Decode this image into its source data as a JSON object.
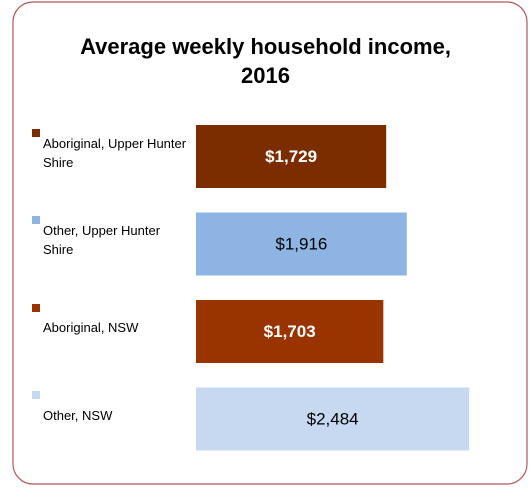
{
  "chart_data": {
    "type": "bar",
    "orientation": "horizontal",
    "title": "Average weekly household income, 2016",
    "categories": [
      "Aboriginal, Upper Hunter Shire",
      "Other, Upper Hunter Shire",
      "Aboriginal, NSW",
      "Other, NSW"
    ],
    "values": [
      1729,
      1916,
      1703,
      2484
    ],
    "value_labels": [
      "$1,729",
      "$1,916",
      "$1,703",
      "$2,484"
    ],
    "colors": [
      "#7b2d00",
      "#8db4e2",
      "#993300",
      "#c6d9f1"
    ],
    "xlim": [
      0,
      2500
    ]
  }
}
